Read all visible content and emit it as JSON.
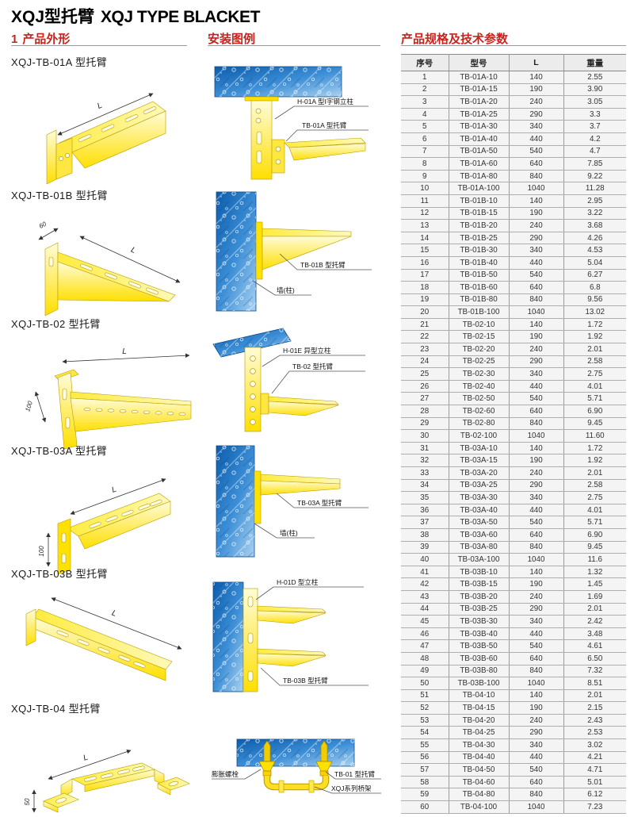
{
  "page": {
    "title_zh": "XQJ型托臂",
    "title_en": "XQJ TYPE BLACKET"
  },
  "sections": {
    "products": {
      "index": "1",
      "title": "产品外形"
    },
    "installation": {
      "title": "安装图例"
    },
    "specs": {
      "title": "产品规格及技术参数"
    }
  },
  "products": [
    {
      "heading": "XQJ-TB-01A 型托臂",
      "dim_l": "L"
    },
    {
      "heading": "XQJ-TB-01B 型托臂",
      "dim_l": "L",
      "dim_w": "60"
    },
    {
      "heading": "XQJ-TB-02 型托臂",
      "dim_l": "L",
      "dim_h": "100"
    },
    {
      "heading": "XQJ-TB-03A 型托臂",
      "dim_l": "L",
      "dim_h": "100"
    },
    {
      "heading": "XQJ-TB-03B 型托臂",
      "dim_l": "L"
    },
    {
      "heading": "XQJ-TB-04 型托臂",
      "dim_l": "L",
      "dim_h": "50"
    }
  ],
  "installations": [
    {
      "label1": "H-01A 型I字钢立柱",
      "label2": "TB-01A 型托臂"
    },
    {
      "label1": "TB-01B 型托臂",
      "label2": "墙(柱)"
    },
    {
      "label1": "H-01E 异型立柱",
      "label2": "TB-02 型托臂"
    },
    {
      "label1": "TB-03A 型托臂",
      "label2": "墙(柱)"
    },
    {
      "label1": "H-01D 型立柱",
      "label2": "TB-03B 型托臂"
    },
    {
      "label1": "膨胀螺栓",
      "label2": "TB-01 型托臂",
      "label3": "XQJ系列桥架"
    }
  ],
  "table": {
    "headers": [
      "序号",
      "型号",
      "L",
      "重量"
    ],
    "rows": [
      [
        "1",
        "TB-01A-10",
        "140",
        "2.55"
      ],
      [
        "2",
        "TB-01A-15",
        "190",
        "3.90"
      ],
      [
        "3",
        "TB-01A-20",
        "240",
        "3.05"
      ],
      [
        "4",
        "TB-01A-25",
        "290",
        "3.3"
      ],
      [
        "5",
        "TB-01A-30",
        "340",
        "3.7"
      ],
      [
        "6",
        "TB-01A-40",
        "440",
        "4.2"
      ],
      [
        "7",
        "TB-01A-50",
        "540",
        "4.7"
      ],
      [
        "8",
        "TB-01A-60",
        "640",
        "7.85"
      ],
      [
        "9",
        "TB-01A-80",
        "840",
        "9.22"
      ],
      [
        "10",
        "TB-01A-100",
        "1040",
        "11.28"
      ],
      [
        "11",
        "TB-01B-10",
        "140",
        "2.95"
      ],
      [
        "12",
        "TB-01B-15",
        "190",
        "3.22"
      ],
      [
        "13",
        "TB-01B-20",
        "240",
        "3.68"
      ],
      [
        "14",
        "TB-01B-25",
        "290",
        "4.26"
      ],
      [
        "15",
        "TB-01B-30",
        "340",
        "4.53"
      ],
      [
        "16",
        "TB-01B-40",
        "440",
        "5.04"
      ],
      [
        "17",
        "TB-01B-50",
        "540",
        "6.27"
      ],
      [
        "18",
        "TB-01B-60",
        "640",
        "6.8"
      ],
      [
        "19",
        "TB-01B-80",
        "840",
        "9.56"
      ],
      [
        "20",
        "TB-01B-100",
        "1040",
        "13.02"
      ],
      [
        "21",
        "TB-02-10",
        "140",
        "1.72"
      ],
      [
        "22",
        "TB-02-15",
        "190",
        "1.92"
      ],
      [
        "23",
        "TB-02-20",
        "240",
        "2.01"
      ],
      [
        "24",
        "TB-02-25",
        "290",
        "2.58"
      ],
      [
        "25",
        "TB-02-30",
        "340",
        "2.75"
      ],
      [
        "26",
        "TB-02-40",
        "440",
        "4.01"
      ],
      [
        "27",
        "TB-02-50",
        "540",
        "5.71"
      ],
      [
        "28",
        "TB-02-60",
        "640",
        "6.90"
      ],
      [
        "29",
        "TB-02-80",
        "840",
        "9.45"
      ],
      [
        "30",
        "TB-02-100",
        "1040",
        "11.60"
      ],
      [
        "31",
        "TB-03A-10",
        "140",
        "1.72"
      ],
      [
        "32",
        "TB-03A-15",
        "190",
        "1.92"
      ],
      [
        "33",
        "TB-03A-20",
        "240",
        "2.01"
      ],
      [
        "34",
        "TB-03A-25",
        "290",
        "2.58"
      ],
      [
        "35",
        "TB-03A-30",
        "340",
        "2.75"
      ],
      [
        "36",
        "TB-03A-40",
        "440",
        "4.01"
      ],
      [
        "37",
        "TB-03A-50",
        "540",
        "5.71"
      ],
      [
        "38",
        "TB-03A-60",
        "640",
        "6.90"
      ],
      [
        "39",
        "TB-03A-80",
        "840",
        "9.45"
      ],
      [
        "40",
        "TB-03A-100",
        "1040",
        "11.6"
      ],
      [
        "41",
        "TB-03B-10",
        "140",
        "1.32"
      ],
      [
        "42",
        "TB-03B-15",
        "190",
        "1.45"
      ],
      [
        "43",
        "TB-03B-20",
        "240",
        "1.69"
      ],
      [
        "44",
        "TB-03B-25",
        "290",
        "2.01"
      ],
      [
        "45",
        "TB-03B-30",
        "340",
        "2.42"
      ],
      [
        "46",
        "TB-03B-40",
        "440",
        "3.48"
      ],
      [
        "47",
        "TB-03B-50",
        "540",
        "4.61"
      ],
      [
        "48",
        "TB-03B-60",
        "640",
        "6.50"
      ],
      [
        "49",
        "TB-03B-80",
        "840",
        "7.32"
      ],
      [
        "50",
        "TB-03B-100",
        "1040",
        "8.51"
      ],
      [
        "51",
        "TB-04-10",
        "140",
        "2.01"
      ],
      [
        "52",
        "TB-04-15",
        "190",
        "2.15"
      ],
      [
        "53",
        "TB-04-20",
        "240",
        "2.43"
      ],
      [
        "54",
        "TB-04-25",
        "290",
        "2.53"
      ],
      [
        "55",
        "TB-04-30",
        "340",
        "3.02"
      ],
      [
        "56",
        "TB-04-40",
        "440",
        "4.21"
      ],
      [
        "57",
        "TB-04-50",
        "540",
        "4.71"
      ],
      [
        "58",
        "TB-04-60",
        "640",
        "5.01"
      ],
      [
        "59",
        "TB-04-80",
        "840",
        "6.12"
      ],
      [
        "60",
        "TB-04-100",
        "1040",
        "7.23"
      ]
    ]
  },
  "colors": {
    "accent_red": "#c8231d",
    "bracket_yellow": "#ffe100",
    "concrete_blue": "#2f83cf",
    "table_line": "#9a9a9a"
  }
}
